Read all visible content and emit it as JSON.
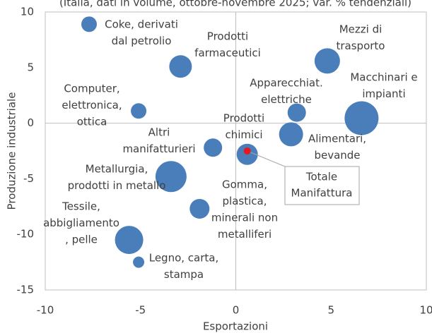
{
  "chart_data": {
    "type": "scatter",
    "subtitle": "(Italia, dati in volume, ottobre-novembre 2025; var. % tendenziali)",
    "x_label": "Esportazioni",
    "y_label": "Produzione industriale",
    "color": "#4a7ebb",
    "labels": [
      [
        "Coke, derivati",
        "dal petrolio"
      ],
      [
        "Prodotti",
        "farmaceutici"
      ],
      [
        "Mezzi di",
        "trasporto"
      ],
      [
        "Computer,",
        "elettronica,",
        "ottica"
      ],
      [
        "Apparecchiat.",
        "elettriche"
      ],
      [
        "Macchinari e",
        "impianti"
      ],
      [
        "Alimentari,",
        "bevande"
      ],
      [
        "Altri",
        "manifatturieri"
      ],
      [
        "Prodotti",
        "chimici"
      ],
      [
        "Metallurgia,",
        "prodotti in metallo"
      ],
      [
        "Gomma,",
        "plastica,",
        "minerali non",
        "metalliferi"
      ],
      [
        "Tessile,",
        "abbigliamento",
        ", pelle"
      ],
      [
        "Legno, carta,",
        "stampa"
      ]
    ],
    "x": [
      -7.7,
      -2.9,
      4.8,
      -5.1,
      3.2,
      6.6,
      2.9,
      -1.2,
      0.6,
      -3.4,
      -1.9,
      -5.6,
      -5.1
    ],
    "y": [
      8.9,
      5.1,
      5.6,
      1.1,
      0.95,
      0.45,
      -1.0,
      -2.2,
      -2.8,
      -4.8,
      -7.7,
      -10.5,
      -12.5
    ],
    "sizes": [
      11,
      16,
      18,
      11,
      13,
      24,
      17,
      13,
      15,
      22,
      14,
      20,
      8
    ],
    "highlight": {
      "label": [
        "Totale",
        "Manifattura"
      ],
      "x": 0.6,
      "y": -2.5,
      "size": 5,
      "color": "#e8171b"
    },
    "xlim": [
      -10,
      10
    ],
    "ylim": [
      -15,
      10
    ],
    "xticks": [
      -10,
      -5,
      0,
      5,
      10
    ],
    "yticks": [
      -15,
      -10,
      -5,
      0,
      5,
      10
    ]
  }
}
